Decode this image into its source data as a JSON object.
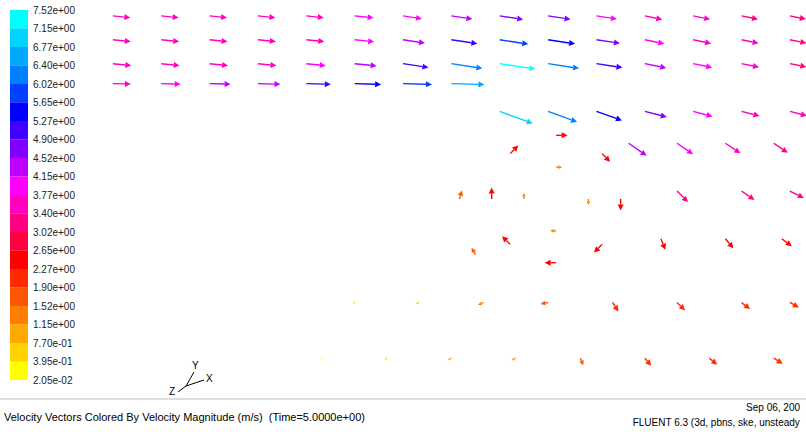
{
  "chart_data": {
    "type": "vector",
    "title": "Velocity Vectors Colored By Velocity Magnitude (m/s)  (Time=5.0000e+00)",
    "annotations": [
      "Sep 06, 200",
      "FLUENT 6.3 (3d, pbns, ske, unsteady"
    ],
    "triad": [
      "X",
      "Y",
      "Z"
    ],
    "xlim": [
      0,
      100
    ],
    "ylim": [
      0,
      50
    ],
    "tick_labels": false,
    "grid": false,
    "points": [
      [
        14,
        48,
        3.5,
        -0.35
      ],
      [
        20,
        48,
        3.5,
        -0.35
      ],
      [
        26,
        48,
        3.5,
        -0.35
      ],
      [
        32,
        48,
        3.5,
        -0.35
      ],
      [
        38,
        48,
        3.5,
        -0.35
      ],
      [
        44,
        48,
        3.8,
        -0.38
      ],
      [
        50,
        48,
        3.8,
        -0.57
      ],
      [
        56,
        48,
        4.2,
        -0.63
      ],
      [
        62,
        48,
        4.7,
        -0.7
      ],
      [
        68,
        48,
        4.5,
        -0.68
      ],
      [
        74,
        48,
        4.1,
        -0.62
      ],
      [
        80,
        48,
        3.5,
        -0.7
      ],
      [
        86,
        48,
        3.4,
        -0.68
      ],
      [
        92,
        48,
        3.3,
        -0.66
      ],
      [
        98,
        48,
        3.2,
        -0.64
      ],
      [
        14,
        45,
        3.6,
        -0.36
      ],
      [
        20,
        45,
        3.6,
        -0.36
      ],
      [
        26,
        45,
        3.6,
        -0.36
      ],
      [
        32,
        45,
        3.6,
        -0.36
      ],
      [
        38,
        45,
        3.6,
        -0.36
      ],
      [
        44,
        45,
        3.9,
        -0.39
      ],
      [
        50,
        45,
        4.4,
        -0.66
      ],
      [
        56,
        45,
        5.2,
        -0.78
      ],
      [
        62,
        45,
        5.7,
        -0.86
      ],
      [
        68,
        45,
        5.4,
        -0.81
      ],
      [
        74,
        45,
        4.7,
        -0.7
      ],
      [
        80,
        45,
        3.9,
        -0.78
      ],
      [
        86,
        45,
        3.6,
        -0.72
      ],
      [
        92,
        45,
        3.4,
        -0.68
      ],
      [
        98,
        45,
        3.3,
        -0.66
      ],
      [
        14,
        42,
        3.7,
        -0.37
      ],
      [
        20,
        42,
        3.7,
        -0.37
      ],
      [
        26,
        42,
        3.7,
        -0.37
      ],
      [
        32,
        42,
        3.7,
        -0.37
      ],
      [
        38,
        42,
        3.9,
        -0.39
      ],
      [
        44,
        42,
        4.4,
        -0.44
      ],
      [
        50,
        42,
        5.1,
        -0.77
      ],
      [
        56,
        42,
        6.2,
        -0.93
      ],
      [
        62,
        42,
        7.1,
        -1.07
      ],
      [
        68,
        42,
        6.2,
        -0.93
      ],
      [
        74,
        42,
        5.2,
        -0.78
      ],
      [
        80,
        42,
        4.3,
        -0.86
      ],
      [
        86,
        42,
        3.8,
        -0.76
      ],
      [
        92,
        42,
        3.5,
        -0.7
      ],
      [
        98,
        42,
        3.3,
        -0.66
      ],
      [
        14,
        39.5,
        3.6,
        -0.1
      ],
      [
        20,
        39.5,
        3.9,
        -0.12
      ],
      [
        26,
        39.5,
        4.2,
        -0.13
      ],
      [
        32,
        39.5,
        4.5,
        -0.14
      ],
      [
        38,
        39.5,
        4.9,
        -0.15
      ],
      [
        44,
        39.5,
        5.3,
        -0.16
      ],
      [
        50,
        39.5,
        5.8,
        -0.17
      ],
      [
        56,
        39.5,
        6.6,
        -0.2
      ],
      [
        62,
        36,
        6.6,
        -2.4
      ],
      [
        68,
        36,
        5.8,
        -2.1
      ],
      [
        74,
        36,
        5.1,
        -1.8
      ],
      [
        80,
        36,
        4.4,
        -1.1
      ],
      [
        86,
        36,
        3.9,
        -1.0
      ],
      [
        92,
        36,
        3.6,
        -0.9
      ],
      [
        98,
        36,
        3.4,
        -0.85
      ],
      [
        78,
        32,
        3.6,
        -2.5
      ],
      [
        84,
        32,
        3.2,
        -2.2
      ],
      [
        90,
        32,
        3.0,
        -2.0
      ],
      [
        96,
        32,
        2.8,
        -1.9
      ],
      [
        77,
        25,
        0,
        -2.3
      ],
      [
        74.7,
        30.7,
        1.63,
        -1.63
      ],
      [
        69,
        33,
        2.3,
        0
      ],
      [
        63.3,
        30.7,
        1.63,
        1.63
      ],
      [
        61,
        25,
        0,
        2.3
      ],
      [
        63.3,
        19.3,
        -1.63,
        1.63
      ],
      [
        69,
        17,
        -2.3,
        0
      ],
      [
        74.7,
        19.3,
        -1.63,
        -1.63
      ],
      [
        73,
        25,
        0,
        -1.2
      ],
      [
        69,
        29,
        1.2,
        0
      ],
      [
        65,
        25,
        0,
        1.2
      ],
      [
        69,
        21,
        -1.2,
        0
      ],
      [
        57,
        25,
        0.5,
        1.7
      ],
      [
        59,
        18,
        -0.8,
        1.4
      ],
      [
        84,
        26,
        2.2,
        -2.2
      ],
      [
        92,
        26,
        2.6,
        -1.8
      ],
      [
        98,
        26,
        2.8,
        -1.4
      ],
      [
        82,
        20,
        0.9,
        -2.2
      ],
      [
        90,
        20,
        1.6,
        -1.9
      ],
      [
        97,
        20,
        2.0,
        -1.5
      ],
      [
        44,
        12,
        -0.4,
        -0.2
      ],
      [
        52,
        12,
        -0.7,
        -0.3
      ],
      [
        60,
        12,
        -1.1,
        -0.5
      ],
      [
        68,
        12,
        -1.5,
        -0.3
      ],
      [
        76,
        12,
        1.2,
        -1.8
      ],
      [
        84,
        12,
        1.6,
        -1.6
      ],
      [
        92,
        12,
        1.7,
        -1.3
      ],
      [
        98,
        12,
        1.8,
        -1.0
      ],
      [
        40,
        5,
        -0.3,
        -0.2
      ],
      [
        48,
        5,
        -0.5,
        -0.3
      ],
      [
        56,
        5,
        -0.7,
        -0.4
      ],
      [
        64,
        5,
        -0.9,
        -0.4
      ],
      [
        72,
        5,
        0.6,
        -1.4
      ],
      [
        80,
        5,
        1.3,
        -1.5
      ],
      [
        88,
        5,
        1.6,
        -1.3
      ],
      [
        96,
        5,
        1.8,
        -1.1
      ]
    ],
    "colorbar": {
      "ticks": [
        {
          "value": 0.0205,
          "label": "2.05e-02"
        },
        {
          "value": 0.395,
          "label": "3.95e-01"
        },
        {
          "value": 0.77,
          "label": "7.70e-01"
        },
        {
          "value": 1.15,
          "label": "1.15e+00"
        },
        {
          "value": 1.52,
          "label": "1.52e+00"
        },
        {
          "value": 1.9,
          "label": "1.90e+00"
        },
        {
          "value": 2.27,
          "label": "2.27e+00"
        },
        {
          "value": 2.65,
          "label": "2.65e+00"
        },
        {
          "value": 3.02,
          "label": "3.02e+00"
        },
        {
          "value": 3.4,
          "label": "3.40e+00"
        },
        {
          "value": 3.77,
          "label": "3.77e+00"
        },
        {
          "value": 4.15,
          "label": "4.15e+00"
        },
        {
          "value": 4.52,
          "label": "4.52e+00"
        },
        {
          "value": 4.9,
          "label": "4.90e+00"
        },
        {
          "value": 5.27,
          "label": "5.27e+00"
        },
        {
          "value": 5.65,
          "label": "5.65e+00"
        },
        {
          "value": 6.02,
          "label": "6.02e+00"
        },
        {
          "value": 6.4,
          "label": "6.40e+00"
        },
        {
          "value": 6.77,
          "label": "6.77e+00"
        },
        {
          "value": 7.15,
          "label": "7.15e+00"
        },
        {
          "value": 7.52,
          "label": "7.52e+00"
        }
      ],
      "colors": [
        "#ffff00",
        "#ffd200",
        "#ffa800",
        "#ff7e00",
        "#ff5400",
        "#ff2a00",
        "#ff0000",
        "#ff0040",
        "#ff0080",
        "#ff00c0",
        "#ff00ff",
        "#c000ff",
        "#8000ff",
        "#4000ff",
        "#0000ff",
        "#0040ff",
        "#0080ff",
        "#00a8ff",
        "#00d4ff",
        "#00ffff"
      ]
    }
  }
}
